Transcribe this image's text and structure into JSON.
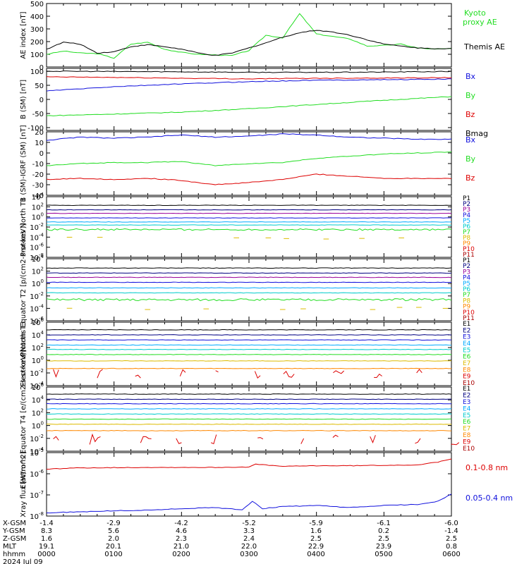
{
  "colors": {
    "black": "#000000",
    "green": "#22dd22",
    "blue": "#1010dd",
    "red": "#dd0000",
    "navy": "#000080",
    "purple": "#990099",
    "cyan": "#00cccc",
    "teal": "#00aa66",
    "orange": "#ff8800",
    "gold": "#ddbb00",
    "yellow": "#cccc00",
    "deepred": "#aa0000"
  },
  "chart_data": [
    {
      "type": "line",
      "ylabel": "AE index [nT]",
      "ylim": [
        0,
        500
      ],
      "yticks": [
        0,
        100,
        200,
        300,
        400,
        500
      ],
      "series": [
        {
          "name": "Kyoto proxy AE",
          "color": "#22dd22",
          "x": [
            0,
            0.25,
            0.5,
            0.75,
            1,
            1.25,
            1.5,
            1.75,
            2,
            2.25,
            2.5,
            2.75,
            3,
            3.25,
            3.5,
            3.75,
            4,
            4.25,
            4.5,
            4.75,
            5,
            5.25,
            5.5,
            5.75,
            6
          ],
          "y": [
            100,
            125,
            110,
            105,
            70,
            180,
            195,
            140,
            115,
            100,
            95,
            90,
            130,
            250,
            230,
            420,
            260,
            240,
            220,
            165,
            170,
            180,
            150,
            140,
            145
          ]
        },
        {
          "name": "Themis AE",
          "color": "#000000",
          "x": [
            0,
            0.25,
            0.5,
            0.75,
            1,
            1.25,
            1.5,
            1.75,
            2,
            2.25,
            2.5,
            2.75,
            3,
            3.25,
            3.5,
            3.75,
            4,
            4.25,
            4.5,
            4.75,
            5,
            5.25,
            5.5,
            5.75,
            6
          ],
          "y": [
            140,
            195,
            180,
            110,
            120,
            160,
            175,
            160,
            140,
            110,
            90,
            110,
            150,
            190,
            235,
            270,
            290,
            275,
            250,
            215,
            180,
            165,
            150,
            145,
            145
          ]
        }
      ]
    },
    {
      "type": "line",
      "ylabel": "B (SM) [nT]",
      "ylim": [
        -110,
        110
      ],
      "yticks": [
        -100,
        -50,
        0,
        50,
        100
      ],
      "series": [
        {
          "name": "Bx",
          "color": "#1010dd",
          "x": [
            0,
            1,
            2,
            3,
            4,
            5,
            6
          ],
          "y": [
            30,
            45,
            55,
            63,
            68,
            70,
            72
          ]
        },
        {
          "name": "By",
          "color": "#22dd22",
          "x": [
            0,
            1,
            2,
            3,
            4,
            5,
            6
          ],
          "y": [
            -58,
            -52,
            -45,
            -33,
            -18,
            -3,
            10
          ]
        },
        {
          "name": "Bz",
          "color": "#dd0000",
          "x": [
            0,
            1,
            2,
            3,
            4,
            5,
            6
          ],
          "y": [
            80,
            78,
            75,
            73,
            75,
            76,
            77
          ]
        },
        {
          "name": "Bmag",
          "color": "#000000",
          "x": [
            0,
            1,
            2,
            3,
            4,
            5,
            6
          ],
          "y": [
            100,
            99,
            98,
            96,
            96,
            97,
            99
          ]
        }
      ]
    },
    {
      "type": "line",
      "ylabel": "B (SM)-IGRF (SM) [nT]",
      "ylim": [
        -40,
        20
      ],
      "yticks": [
        -40,
        -30,
        -20,
        -10,
        0,
        10,
        20
      ],
      "series": [
        {
          "name": "Bx",
          "color": "#1010dd",
          "x": [
            0,
            0.5,
            1,
            1.5,
            2,
            2.5,
            3,
            3.5,
            4,
            4.5,
            5,
            5.5,
            6
          ],
          "y": [
            12,
            15,
            14,
            15,
            17,
            15,
            16,
            18,
            17,
            15,
            14,
            13,
            13
          ]
        },
        {
          "name": "By",
          "color": "#22dd22",
          "x": [
            0,
            0.5,
            1,
            1.5,
            2,
            2.5,
            3,
            3.5,
            4,
            4.5,
            5,
            5.5,
            6
          ],
          "y": [
            -12,
            -10,
            -9,
            -9,
            -8,
            -12,
            -10,
            -9,
            -5,
            -3,
            -1,
            0,
            1
          ]
        },
        {
          "name": "Bz",
          "color": "#dd0000",
          "x": [
            0,
            0.5,
            1,
            1.5,
            2,
            2.5,
            3,
            3.5,
            4,
            4.5,
            5,
            5.5,
            6
          ],
          "y": [
            -25,
            -24,
            -25,
            -24,
            -26,
            -30,
            -28,
            -25,
            -20,
            -22,
            -24,
            -24,
            -24
          ]
        }
      ]
    },
    {
      "type": "line",
      "log": true,
      "ylabel": "Protons North T1",
      "ylim": [
        -8,
        4
      ],
      "yticks": [
        4,
        2,
        0,
        -2,
        -4,
        -6,
        -8
      ],
      "series": [
        {
          "name": "P1",
          "color": "#000000",
          "level": 2.3
        },
        {
          "name": "P2",
          "color": "#000080",
          "level": 1.4
        },
        {
          "name": "P3",
          "color": "#990099",
          "level": 0.7
        },
        {
          "name": "P4",
          "color": "#1010dd",
          "level": -0.2
        },
        {
          "name": "P5",
          "color": "#00aaff",
          "level": -1.0
        },
        {
          "name": "P6",
          "color": "#00cccc",
          "level": -1.6
        },
        {
          "name": "P7",
          "color": "#22dd22",
          "level": -2.5
        },
        {
          "name": "P8",
          "color": "#ddbb00",
          "level": -4.2
        },
        {
          "name": "P9",
          "color": "#ff8800",
          "level": null
        },
        {
          "name": "P10",
          "color": "#dd0000",
          "level": null
        },
        {
          "name": "P11",
          "color": "#aa0000",
          "level": null
        }
      ]
    },
    {
      "type": "line",
      "log": true,
      "ylabel": "Protons Equator T2 [p/(cm2-s-sr-keV)]",
      "ylim": [
        -6,
        4
      ],
      "yticks": [
        4,
        2,
        0,
        -2,
        -4,
        -6
      ],
      "series": [
        {
          "name": "P1",
          "color": "#000000",
          "level": 2.5
        },
        {
          "name": "P2",
          "color": "#000080",
          "level": 1.7
        },
        {
          "name": "P3",
          "color": "#990099",
          "level": 1.0
        },
        {
          "name": "P4",
          "color": "#1010dd",
          "level": 0.2
        },
        {
          "name": "P5",
          "color": "#00aaff",
          "level": -0.7
        },
        {
          "name": "P6",
          "color": "#00cccc",
          "level": -1.5
        },
        {
          "name": "P7",
          "color": "#22dd22",
          "level": -2.6
        },
        {
          "name": "P8",
          "color": "#ddbb00",
          "level": -4.0
        },
        {
          "name": "P9",
          "color": "#ff8800",
          "level": null
        },
        {
          "name": "P10",
          "color": "#dd0000",
          "level": null
        },
        {
          "name": "P11",
          "color": "#aa0000",
          "level": null
        }
      ]
    },
    {
      "type": "line",
      "log": true,
      "ylabel": "Electrons North T3",
      "ylim": [
        -4,
        6
      ],
      "yticks": [
        6,
        4,
        2,
        0,
        -2,
        -4
      ],
      "series": [
        {
          "name": "E1",
          "color": "#000000",
          "level": 4.8
        },
        {
          "name": "E2",
          "color": "#000080",
          "level": 4.0
        },
        {
          "name": "E3",
          "color": "#1010dd",
          "level": 3.2
        },
        {
          "name": "E4",
          "color": "#00aaff",
          "level": 2.4
        },
        {
          "name": "E5",
          "color": "#00cccc",
          "level": 1.7
        },
        {
          "name": "E6",
          "color": "#22dd22",
          "level": 0.9
        },
        {
          "name": "E7",
          "color": "#ddbb00",
          "level": -0.1
        },
        {
          "name": "E8",
          "color": "#ff8800",
          "level": -1.3
        },
        {
          "name": "E9",
          "color": "#dd0000",
          "level": -2.2
        },
        {
          "name": "E10",
          "color": "#aa0000",
          "level": null
        }
      ]
    },
    {
      "type": "line",
      "log": true,
      "ylabel": "Electrons Equator T4 [e/(cm2-s-sr-keV)]",
      "ylim": [
        -4,
        6
      ],
      "yticks": [
        6,
        4,
        2,
        0,
        -2,
        -4
      ],
      "series": [
        {
          "name": "E1",
          "color": "#000000",
          "level": 4.9
        },
        {
          "name": "E2",
          "color": "#000080",
          "level": 4.1
        },
        {
          "name": "E3",
          "color": "#1010dd",
          "level": 3.4
        },
        {
          "name": "E4",
          "color": "#00aaff",
          "level": 2.6
        },
        {
          "name": "E5",
          "color": "#00cccc",
          "level": 1.8
        },
        {
          "name": "E6",
          "color": "#22dd22",
          "level": 1.0
        },
        {
          "name": "E7",
          "color": "#ddbb00",
          "level": 0.2
        },
        {
          "name": "E8",
          "color": "#ff8800",
          "level": -0.8
        },
        {
          "name": "E9",
          "color": "#dd0000",
          "level": -2.2
        },
        {
          "name": "E10",
          "color": "#aa0000",
          "level": null
        }
      ]
    },
    {
      "type": "line",
      "log": true,
      "ylabel": "Xray flux [W/m^2]",
      "ylim": [
        -8,
        -5
      ],
      "yticks": [
        -5,
        -6,
        -7,
        -8
      ],
      "series": [
        {
          "name": "0.1-0.8 nm",
          "color": "#dd0000",
          "x": [
            0,
            0.5,
            1,
            1.5,
            2,
            2.5,
            3,
            3.1,
            3.5,
            4,
            4.5,
            5,
            5.5,
            5.8,
            6
          ],
          "y": [
            -5.78,
            -5.72,
            -5.71,
            -5.7,
            -5.7,
            -5.7,
            -5.68,
            -5.55,
            -5.65,
            -5.62,
            -5.62,
            -5.6,
            -5.58,
            -5.45,
            -5.3
          ]
        },
        {
          "name": "0.05-0.4 nm",
          "color": "#1010dd",
          "x": [
            0,
            0.5,
            1,
            1.5,
            2,
            2.5,
            2.9,
            3.05,
            3.2,
            3.5,
            4,
            4.5,
            5,
            5.5,
            5.8,
            6
          ],
          "y": [
            -7.85,
            -7.8,
            -7.75,
            -7.72,
            -7.65,
            -7.6,
            -7.7,
            -7.3,
            -7.65,
            -7.55,
            -7.5,
            -7.6,
            -7.5,
            -7.45,
            -7.3,
            -6.95
          ]
        }
      ]
    }
  ],
  "axis": {
    "rows": [
      {
        "label": "X-GSM",
        "values": [
          "-1.4",
          "-2.9",
          "-4.2",
          "-5.2",
          "-5.9",
          "-6.1",
          "-6.0"
        ]
      },
      {
        "label": "Y-GSM",
        "values": [
          "8.3",
          "5.6",
          "4.6",
          "3.3",
          "1.6",
          "0.2",
          "-1.4"
        ]
      },
      {
        "label": "Z-GSM",
        "values": [
          "1.6",
          "2.0",
          "2.3",
          "2.4",
          "2.5",
          "2.5",
          "2.5"
        ]
      },
      {
        "label": "MLT",
        "values": [
          "19.1",
          "20.1",
          "21.0",
          "22.0",
          "22.9",
          "23.9",
          "0.8"
        ]
      },
      {
        "label": "hhmm",
        "values": [
          "0000",
          "0100",
          "0200",
          "0300",
          "0400",
          "0500",
          "0600"
        ]
      }
    ],
    "date": "2024 Jul 09"
  }
}
